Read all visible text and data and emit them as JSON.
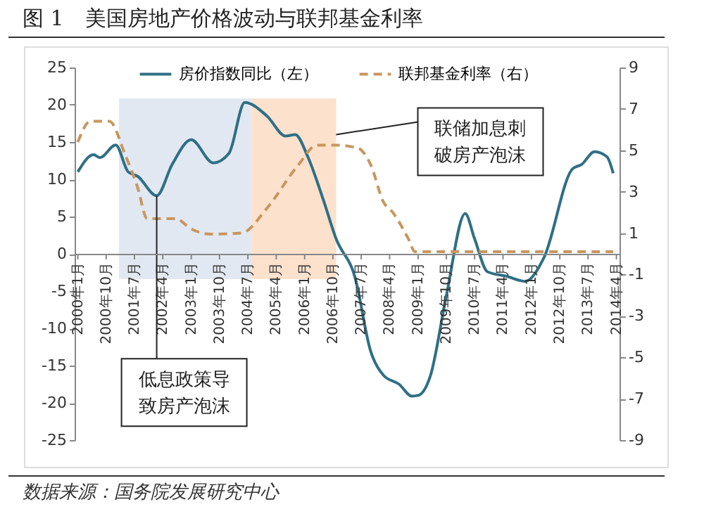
{
  "chart_data": {
    "type": "line",
    "title": "图 1　美国房地产价格波动与联邦基金利率",
    "x": [
      "2000-01",
      "2000-06",
      "2000-08",
      "2001-01",
      "2001-05",
      "2001-08",
      "2002-02",
      "2002-07",
      "2003-01",
      "2003-08",
      "2004-01",
      "2004-06",
      "2005-01",
      "2005-07",
      "2005-10",
      "2006-02",
      "2006-07",
      "2006-11",
      "2007-05",
      "2007-10",
      "2008-02",
      "2008-07",
      "2008-11",
      "2009-01",
      "2009-05",
      "2009-10",
      "2010-04",
      "2010-07",
      "2010-11",
      "2011-05",
      "2011-11",
      "2012-05",
      "2013-02",
      "2013-05",
      "2013-09",
      "2014-01",
      "2014-03"
    ],
    "series": [
      {
        "name": "房价指数同比（左）",
        "color": "#2f6f85",
        "values": [
          11,
          13.3,
          12.9,
          14.6,
          11,
          10.4,
          7.8,
          12,
          15.3,
          12.2,
          13.5,
          20.3,
          18.5,
          15.8,
          16,
          13,
          7.2,
          2,
          -3.1,
          -13.1,
          -16.3,
          -17.5,
          -19.1,
          -19,
          -16.3,
          -5.6,
          5.4,
          2,
          -2.4,
          -3,
          -3.7,
          -0.5,
          11.4,
          12,
          13.7,
          13,
          10.8
        ]
      },
      {
        "name": "联邦基金利率（右）",
        "color": "#c8965e",
        "axis": "y2",
        "line_style": "dashed",
        "x": [
          "2000-01",
          "2000-05",
          "2000-11",
          "2001-04",
          "2001-08",
          "2001-11",
          "2002-08",
          "2003-01",
          "2003-07",
          "2004-05",
          "2005-01",
          "2005-11",
          "2006-05",
          "2006-11",
          "2007-06",
          "2007-10",
          "2008-02",
          "2008-05",
          "2008-10",
          "2008-12",
          "2010-01",
          "2012-01",
          "2014-03"
        ],
        "values": [
          5.4,
          6.4,
          6.4,
          4.8,
          3.2,
          1.7,
          1.7,
          1.2,
          0.95,
          1,
          2.2,
          4.3,
          5.25,
          5.25,
          5.1,
          4.3,
          2.5,
          2,
          0.7,
          0.1,
          0.1,
          0.1,
          0.1
        ]
      }
    ],
    "xlim": [
      "1999-12",
      "2014-05"
    ],
    "xticks": [
      {
        "value": "2000-01",
        "label": "2000年1月"
      },
      {
        "value": "2000-10",
        "label": "2000年10月"
      },
      {
        "value": "2001-07",
        "label": "2001年7月"
      },
      {
        "value": "2002-04",
        "label": "2002年4月"
      },
      {
        "value": "2003-01",
        "label": "2003年1月"
      },
      {
        "value": "2003-10",
        "label": "2003年10月"
      },
      {
        "value": "2004-07",
        "label": "2004年7月"
      },
      {
        "value": "2005-04",
        "label": "2005年4月"
      },
      {
        "value": "2006-01",
        "label": "2006年1月"
      },
      {
        "value": "2006-10",
        "label": "2006年10月"
      },
      {
        "value": "2007-07",
        "label": "2007年7月"
      },
      {
        "value": "2008-04",
        "label": "2008年4月"
      },
      {
        "value": "2009-01",
        "label": "2009年1月"
      },
      {
        "value": "2009-10",
        "label": "2009年10月"
      },
      {
        "value": "2010-07",
        "label": "2010年7月"
      },
      {
        "value": "2011-04",
        "label": "2011年4月"
      },
      {
        "value": "2012-01",
        "label": "2012年1月"
      },
      {
        "value": "2012-10",
        "label": "2012年10月"
      },
      {
        "value": "2013-07",
        "label": "2013年7月"
      },
      {
        "value": "2014-04",
        "label": "2014年4月"
      }
    ],
    "ylim": [
      -25,
      25
    ],
    "yticks": [
      -25,
      -20,
      -15,
      -10,
      -5,
      0,
      5,
      10,
      15,
      20,
      25
    ],
    "y2lim": [
      -9,
      9
    ],
    "y2ticks": [
      -9,
      -7,
      -5,
      -3,
      -1,
      1,
      3,
      5,
      7,
      9
    ],
    "bands": [
      {
        "axis": "x",
        "from": "2001-02",
        "to": "2004-08",
        "color": "#dce4f0"
      },
      {
        "axis": "x",
        "from": "2004-08",
        "to": "2006-11",
        "color": "#fbdcc4"
      }
    ],
    "annotations": [
      {
        "text": "联储加息刺破房产泡沫",
        "x": "2006-11",
        "y": 16
      },
      {
        "text": "低息政策导致房产泡沫",
        "x": "2002-02",
        "y": 7.8
      },
      "数据来源：国务院发展研究中心"
    ],
    "legend": "top",
    "grid": false,
    "marker": "none"
  }
}
